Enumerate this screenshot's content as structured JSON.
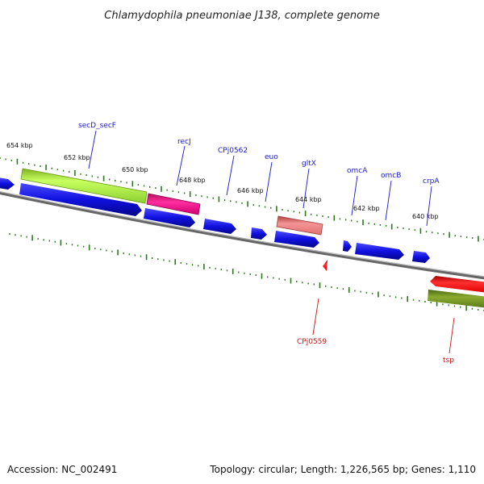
{
  "title": "Chlamydophila pneumoniae J138, complete genome",
  "footer": {
    "accession": "Accession: NC_002491",
    "summary": "Topology: circular; Length: 1,226,565 bp; Genes: 1,110"
  },
  "scale_labels": [
    "654 kbp",
    "652 kbp",
    "650 kbp",
    "648 kbp",
    "646 kbp",
    "644 kbp",
    "642 kbp",
    "640 kbp"
  ],
  "gene_labels": [
    {
      "text": "secD_secF",
      "color": "#1a1acc"
    },
    {
      "text": "recJ",
      "color": "#1a1acc"
    },
    {
      "text": "CPj0562",
      "color": "#1a1acc"
    },
    {
      "text": "euo",
      "color": "#1a1acc"
    },
    {
      "text": "gltX",
      "color": "#1a1acc"
    },
    {
      "text": "omcA",
      "color": "#1a1acc"
    },
    {
      "text": "omcB",
      "color": "#1a1acc"
    },
    {
      "text": "crpA",
      "color": "#1a1acc"
    },
    {
      "text": "CPj0559",
      "color": "#cc1111"
    },
    {
      "text": "tsp",
      "color": "#cc1111"
    }
  ],
  "colors": {
    "backbone": "#888888",
    "cds": "#1010e0",
    "tick": "#2a7a1a",
    "feature_green": "#a8f040",
    "feature_pink": "#ff1a90",
    "feature_salmon": "#f08080",
    "feature_red": "#ff1010",
    "feature_olive": "#6a8a1a"
  }
}
